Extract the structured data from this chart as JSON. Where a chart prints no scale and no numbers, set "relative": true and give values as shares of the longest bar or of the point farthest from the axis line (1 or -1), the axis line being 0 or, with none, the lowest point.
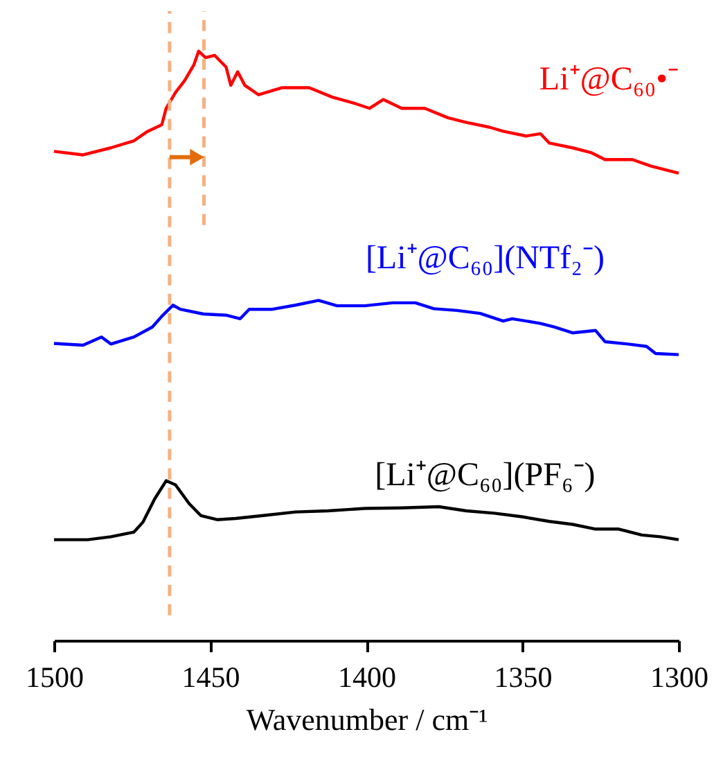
{
  "chart_data": {
    "type": "line",
    "relative": true,
    "xlabel": "Wavenumber / cm⁻¹",
    "xlim": [
      1500,
      1300
    ],
    "xticks": [
      1500,
      1450,
      1400,
      1350,
      1300
    ],
    "grid": false,
    "tick_labels": "x",
    "line_style": "solid",
    "marker": "none",
    "series": [
      {
        "name": "Li⁺@C₆₀•⁻",
        "color": "#ff0000",
        "x": [
          1500,
          1490.7,
          1481.8,
          1474.4,
          1470.0,
          1465.5,
          1464.1,
          1461.1,
          1458.2,
          1455.2,
          1453.7,
          1451.5,
          1448.6,
          1444.9,
          1443.4,
          1441.2,
          1438.9,
          1434.5,
          1427.1,
          1418.3,
          1410.9,
          1403.5,
          1399.0,
          1394.6,
          1388.7,
          1381.3,
          1373.9,
          1368.0,
          1360.6,
          1356.2,
          1348.8,
          1344.3,
          1341.4,
          1334.0,
          1328.1,
          1323.6,
          1314.8,
          1308.9,
          1300
        ],
        "values": [
          0.83,
          0.824,
          0.836,
          0.848,
          0.864,
          0.875,
          0.903,
          0.93,
          0.95,
          0.977,
          1.0,
          0.989,
          0.993,
          0.973,
          0.942,
          0.965,
          0.942,
          0.926,
          0.938,
          0.938,
          0.922,
          0.911,
          0.903,
          0.918,
          0.903,
          0.903,
          0.887,
          0.879,
          0.871,
          0.864,
          0.856,
          0.86,
          0.844,
          0.836,
          0.828,
          0.816,
          0.816,
          0.805,
          0.793
        ]
      },
      {
        "name": "[Li⁺@C₆₀](NTf₂⁻)",
        "color": "#0000ff",
        "x": [
          1500,
          1490.7,
          1484.8,
          1481.8,
          1474.4,
          1468.5,
          1465.5,
          1461.9,
          1459.6,
          1452.2,
          1444.9,
          1440.4,
          1437.5,
          1430.1,
          1422.7,
          1415.3,
          1409.4,
          1400.5,
          1391.6,
          1384.3,
          1378.4,
          1371.0,
          1363.6,
          1356.2,
          1353.3,
          1344.3,
          1339.9,
          1334.0,
          1326.6,
          1323.6,
          1316.2,
          1310.3,
          1307.4,
          1300
        ],
        "values": [
          0.504,
          0.501,
          0.515,
          0.503,
          0.515,
          0.532,
          0.55,
          0.569,
          0.562,
          0.554,
          0.552,
          0.546,
          0.562,
          0.562,
          0.569,
          0.577,
          0.568,
          0.568,
          0.573,
          0.573,
          0.563,
          0.56,
          0.555,
          0.542,
          0.546,
          0.538,
          0.532,
          0.522,
          0.526,
          0.507,
          0.503,
          0.499,
          0.487,
          0.485
        ]
      },
      {
        "name": "[Li⁺@C₆₀](PF₆⁻)",
        "color": "#000000",
        "x": [
          1500,
          1489.2,
          1481.8,
          1474.4,
          1471.5,
          1467.8,
          1464.1,
          1461.1,
          1456.7,
          1453.0,
          1447.8,
          1441.9,
          1433.0,
          1422.7,
          1412.3,
          1400.5,
          1388.7,
          1376.8,
          1368.0,
          1359.1,
          1350.2,
          1341.4,
          1334.0,
          1326.6,
          1319.2,
          1311.8,
          1305.9,
          1300
        ],
        "values": [
          0.171,
          0.171,
          0.176,
          0.184,
          0.201,
          0.24,
          0.271,
          0.264,
          0.232,
          0.212,
          0.205,
          0.207,
          0.212,
          0.218,
          0.22,
          0.224,
          0.225,
          0.227,
          0.22,
          0.216,
          0.21,
          0.202,
          0.197,
          0.189,
          0.189,
          0.179,
          0.176,
          0.171
        ]
      }
    ],
    "ref_lines": [
      {
        "axis": "x",
        "value": 1463,
        "color": "#f4b183",
        "line_style": "dashed"
      },
      {
        "axis": "x",
        "value": 1452,
        "color": "#f4b183",
        "line_style": "dashed"
      }
    ]
  }
}
